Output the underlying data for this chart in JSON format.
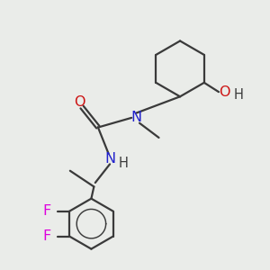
{
  "bg_color": "#eaece9",
  "bond_color": "#3a3a3a",
  "N_color": "#2222cc",
  "O_color": "#cc1111",
  "F_color": "#dd00dd",
  "line_width": 1.6,
  "font_size": 10.5,
  "figsize": [
    3.0,
    3.0
  ],
  "dpi": 100,
  "xlim": [
    0,
    10
  ],
  "ylim": [
    0,
    10
  ]
}
